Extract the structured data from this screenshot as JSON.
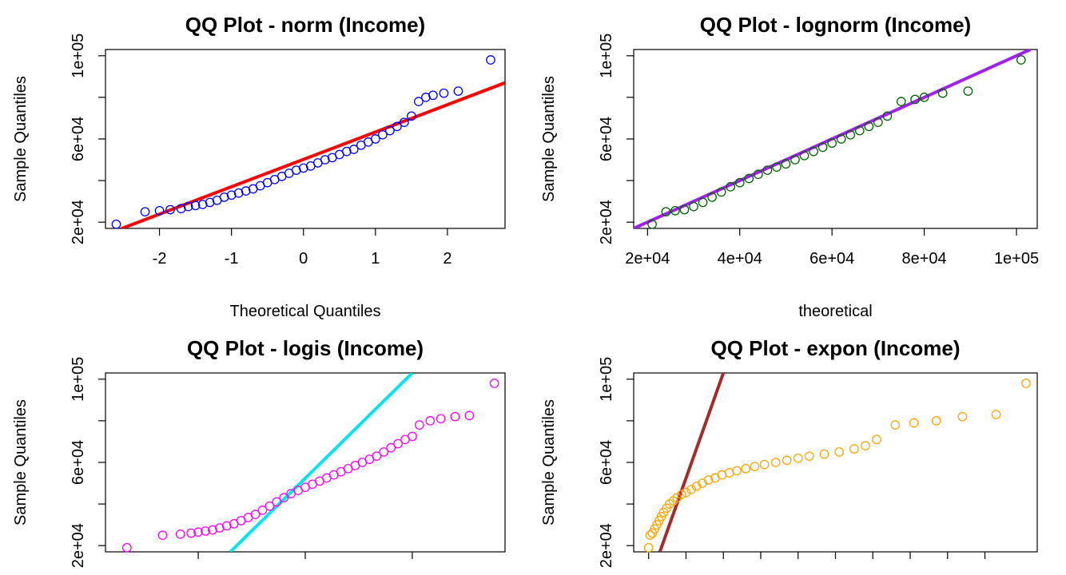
{
  "chart_data": [
    {
      "type": "scatter",
      "title": "QQ Plot - norm (Income)",
      "xlabel": "Theoretical Quantiles",
      "ylabel": "Sample Quantiles",
      "xlim": [
        -2.75,
        2.8
      ],
      "ylim": [
        17000,
        103000
      ],
      "xticks": [
        -2,
        -1,
        0,
        1,
        2
      ],
      "xtick_labels": [
        "-2",
        "-1",
        "0",
        "1",
        "2"
      ],
      "yticks": [
        20000,
        40000,
        60000,
        80000,
        100000
      ],
      "ytick_labels": [
        "2e+04",
        "",
        "6e+04",
        "",
        "1e+05"
      ],
      "point_color": "#0000ff",
      "line_color": "#ff0000",
      "line": {
        "x1": -2.75,
        "y1": 14000,
        "x2": 2.8,
        "y2": 87000
      },
      "points": [
        [
          -2.6,
          19000
        ],
        [
          -2.2,
          25000
        ],
        [
          -2.0,
          25500
        ],
        [
          -1.85,
          26000
        ],
        [
          -1.7,
          26500
        ],
        [
          -1.6,
          27500
        ],
        [
          -1.5,
          28000
        ],
        [
          -1.4,
          28500
        ],
        [
          -1.3,
          29500
        ],
        [
          -1.2,
          30500
        ],
        [
          -1.1,
          32000
        ],
        [
          -1.0,
          33000
        ],
        [
          -0.9,
          34000
        ],
        [
          -0.8,
          35000
        ],
        [
          -0.7,
          36000
        ],
        [
          -0.6,
          37500
        ],
        [
          -0.5,
          39000
        ],
        [
          -0.4,
          40500
        ],
        [
          -0.3,
          42000
        ],
        [
          -0.2,
          43500
        ],
        [
          -0.1,
          45000
        ],
        [
          0.0,
          46000
        ],
        [
          0.1,
          47000
        ],
        [
          0.2,
          48500
        ],
        [
          0.3,
          50000
        ],
        [
          0.4,
          51000
        ],
        [
          0.5,
          52500
        ],
        [
          0.6,
          54000
        ],
        [
          0.7,
          55000
        ],
        [
          0.8,
          57000
        ],
        [
          0.9,
          58500
        ],
        [
          1.0,
          60000
        ],
        [
          1.1,
          62000
        ],
        [
          1.2,
          64000
        ],
        [
          1.3,
          66000
        ],
        [
          1.4,
          68000
        ],
        [
          1.5,
          71000
        ],
        [
          1.6,
          78000
        ],
        [
          1.7,
          80000
        ],
        [
          1.8,
          81000
        ],
        [
          1.95,
          82000
        ],
        [
          2.15,
          83000
        ],
        [
          2.6,
          98000
        ]
      ]
    },
    {
      "type": "scatter",
      "title": "QQ Plot - lognorm (Income)",
      "xlabel": "theoretical",
      "ylabel": "Sample Quantiles",
      "xlim": [
        17000,
        104500
      ],
      "ylim": [
        17000,
        103000
      ],
      "xticks": [
        20000,
        40000,
        60000,
        80000,
        100000
      ],
      "xtick_labels": [
        "2e+04",
        "4e+04",
        "6e+04",
        "8e+04",
        "1e+05"
      ],
      "yticks": [
        20000,
        40000,
        60000,
        80000,
        100000
      ],
      "ytick_labels": [
        "2e+04",
        "",
        "6e+04",
        "",
        "1e+05"
      ],
      "point_color": "#006400",
      "line_color": "#a020f0",
      "line": {
        "x1": 17000,
        "y1": 17000,
        "x2": 103000,
        "y2": 103000
      },
      "points": [
        [
          21000,
          19000
        ],
        [
          24000,
          25000
        ],
        [
          26000,
          25500
        ],
        [
          28000,
          26000
        ],
        [
          30000,
          27500
        ],
        [
          32000,
          29500
        ],
        [
          34000,
          32000
        ],
        [
          36000,
          34500
        ],
        [
          38000,
          37000
        ],
        [
          40000,
          39000
        ],
        [
          42000,
          41000
        ],
        [
          44000,
          43000
        ],
        [
          46000,
          45000
        ],
        [
          48000,
          46500
        ],
        [
          50000,
          48000
        ],
        [
          52000,
          50000
        ],
        [
          54000,
          52000
        ],
        [
          56000,
          54000
        ],
        [
          58000,
          56000
        ],
        [
          60000,
          58000
        ],
        [
          62000,
          60000
        ],
        [
          64000,
          62000
        ],
        [
          66000,
          64000
        ],
        [
          68000,
          66000
        ],
        [
          70000,
          68000
        ],
        [
          72000,
          71000
        ],
        [
          75000,
          78000
        ],
        [
          78000,
          79000
        ],
        [
          80000,
          80000
        ],
        [
          84000,
          82000
        ],
        [
          89500,
          83000
        ],
        [
          101000,
          98000
        ]
      ]
    },
    {
      "type": "scatter",
      "title": "QQ Plot - logis (Income)",
      "xlabel": "",
      "ylabel": "Sample Quantiles",
      "xlim": [
        -5.6,
        5.6
      ],
      "ylim": [
        17000,
        103000
      ],
      "xticks": [
        -3,
        0,
        3
      ],
      "xtick_labels": [
        "",
        "",
        ""
      ],
      "yticks": [
        20000,
        40000,
        60000,
        80000,
        100000
      ],
      "ytick_labels": [
        "2e+04",
        "",
        "6e+04",
        "",
        "1e+05"
      ],
      "point_color": "#ff00ff",
      "line_color": "#00e5ee",
      "line": {
        "x1": -2.1,
        "y1": 17000,
        "x2": 3.0,
        "y2": 103000
      },
      "points": [
        [
          -5.0,
          19000
        ],
        [
          -4.0,
          25000
        ],
        [
          -3.5,
          25500
        ],
        [
          -3.2,
          26000
        ],
        [
          -3.0,
          26500
        ],
        [
          -2.8,
          27000
        ],
        [
          -2.6,
          27500
        ],
        [
          -2.4,
          28500
        ],
        [
          -2.2,
          29500
        ],
        [
          -2.0,
          30500
        ],
        [
          -1.8,
          32000
        ],
        [
          -1.6,
          33500
        ],
        [
          -1.4,
          35000
        ],
        [
          -1.2,
          37000
        ],
        [
          -1.0,
          39000
        ],
        [
          -0.8,
          41000
        ],
        [
          -0.6,
          43000
        ],
        [
          -0.4,
          45000
        ],
        [
          -0.2,
          46500
        ],
        [
          0.0,
          48000
        ],
        [
          0.2,
          49500
        ],
        [
          0.4,
          51000
        ],
        [
          0.6,
          52500
        ],
        [
          0.8,
          54000
        ],
        [
          1.0,
          55500
        ],
        [
          1.2,
          57000
        ],
        [
          1.4,
          58500
        ],
        [
          1.6,
          60000
        ],
        [
          1.8,
          61500
        ],
        [
          2.0,
          63000
        ],
        [
          2.2,
          65000
        ],
        [
          2.4,
          67000
        ],
        [
          2.6,
          69000
        ],
        [
          2.8,
          71000
        ],
        [
          3.0,
          72500
        ],
        [
          3.2,
          78000
        ],
        [
          3.5,
          80000
        ],
        [
          3.8,
          81000
        ],
        [
          4.2,
          82000
        ],
        [
          4.6,
          82500
        ],
        [
          5.3,
          98000
        ]
      ]
    },
    {
      "type": "scatter",
      "title": "QQ Plot - expon (Income)",
      "xlabel": "",
      "ylabel": "Sample Quantiles",
      "xlim": [
        -0.2,
        5.2
      ],
      "ylim": [
        17000,
        103000
      ],
      "xticks": [
        0,
        0.5,
        1,
        1.5,
        2,
        2.5,
        3,
        3.5,
        4,
        4.5
      ],
      "xtick_labels": [
        "",
        "",
        "",
        "",
        "",
        "",
        "",
        "",
        "",
        ""
      ],
      "yticks": [
        20000,
        40000,
        60000,
        80000,
        100000
      ],
      "ytick_labels": [
        "2e+04",
        "",
        "6e+04",
        "",
        "1e+05"
      ],
      "point_color": "#ffa500",
      "line_color": "#a52a2a",
      "line": {
        "x1": 0.15,
        "y1": 17000,
        "x2": 1.0,
        "y2": 103000
      },
      "points": [
        [
          0.0,
          19000
        ],
        [
          0.02,
          25000
        ],
        [
          0.05,
          26000
        ],
        [
          0.08,
          28000
        ],
        [
          0.11,
          30000
        ],
        [
          0.14,
          32000
        ],
        [
          0.17,
          34000
        ],
        [
          0.2,
          36000
        ],
        [
          0.24,
          38000
        ],
        [
          0.28,
          40000
        ],
        [
          0.33,
          41500
        ],
        [
          0.38,
          43000
        ],
        [
          0.44,
          44500
        ],
        [
          0.5,
          45500
        ],
        [
          0.57,
          47000
        ],
        [
          0.64,
          48500
        ],
        [
          0.72,
          50000
        ],
        [
          0.8,
          51500
        ],
        [
          0.89,
          52500
        ],
        [
          0.98,
          54000
        ],
        [
          1.08,
          55000
        ],
        [
          1.18,
          56000
        ],
        [
          1.3,
          57000
        ],
        [
          1.42,
          58000
        ],
        [
          1.55,
          59000
        ],
        [
          1.7,
          60000
        ],
        [
          1.85,
          61000
        ],
        [
          2.0,
          62000
        ],
        [
          2.15,
          63000
        ],
        [
          2.35,
          64000
        ],
        [
          2.55,
          65000
        ],
        [
          2.75,
          66500
        ],
        [
          2.9,
          68000
        ],
        [
          3.05,
          71000
        ],
        [
          3.3,
          78000
        ],
        [
          3.55,
          79000
        ],
        [
          3.85,
          80000
        ],
        [
          4.2,
          82000
        ],
        [
          4.65,
          83000
        ],
        [
          5.05,
          98000
        ]
      ]
    }
  ]
}
